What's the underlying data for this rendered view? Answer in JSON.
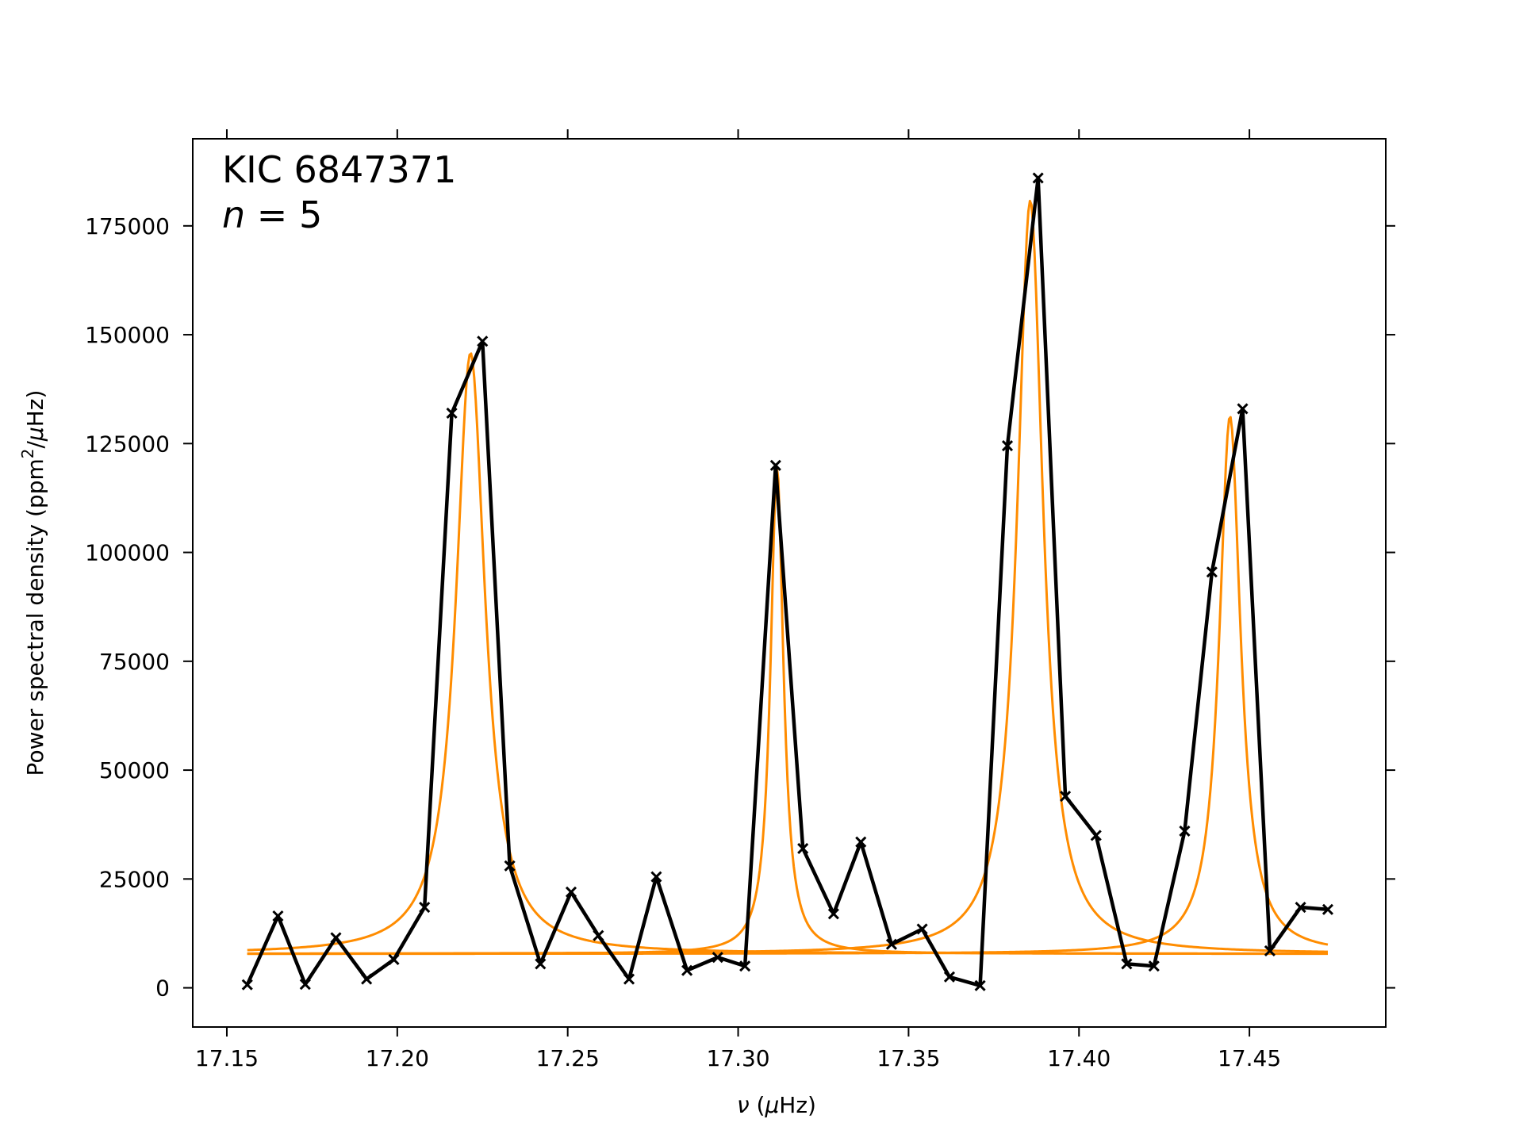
{
  "chart_data": {
    "type": "line",
    "annotation": {
      "line1": "KIC 6847371",
      "line2_var": "n",
      "line2_rest": " = 5"
    },
    "xlabel": {
      "sym": "ν",
      "open": " (",
      "mu": "μ",
      "unit": "Hz)"
    },
    "ylabel": {
      "main": "Power spectral density (ppm",
      "sup": "2",
      "sep": "/",
      "mu": "μ",
      "unit": "Hz)"
    },
    "xlim": [
      17.14,
      17.49
    ],
    "ylim": [
      -9000,
      195000
    ],
    "xticks": [
      17.15,
      17.2,
      17.25,
      17.3,
      17.35,
      17.4,
      17.45
    ],
    "xtick_labels": [
      "17.15",
      "17.20",
      "17.25",
      "17.30",
      "17.35",
      "17.40",
      "17.45"
    ],
    "yticks": [
      0,
      25000,
      50000,
      75000,
      100000,
      125000,
      150000,
      175000
    ],
    "ytick_labels": [
      "0",
      "25000",
      "50000",
      "75000",
      "100000",
      "125000",
      "150000",
      "175000"
    ],
    "grid": false,
    "colors": {
      "data": "#000000",
      "fit": "#ff8c00"
    },
    "series": [
      {
        "marker": "x",
        "x": [
          17.156,
          17.165,
          17.173,
          17.182,
          17.191,
          17.199,
          17.208,
          17.216,
          17.225,
          17.233,
          17.242,
          17.251,
          17.259,
          17.268,
          17.276,
          17.285,
          17.294,
          17.302,
          17.311,
          17.319,
          17.328,
          17.336,
          17.345,
          17.354,
          17.362,
          17.371,
          17.379,
          17.388,
          17.396,
          17.405,
          17.414,
          17.422,
          17.431,
          17.439,
          17.448,
          17.456,
          17.465,
          17.473
        ],
        "y": [
          700,
          16500,
          800,
          11500,
          2000,
          6500,
          18500,
          132000,
          148500,
          28000,
          5500,
          22000,
          12000,
          2000,
          25500,
          4000,
          7000,
          5000,
          120000,
          32000,
          17000,
          33500,
          10000,
          13500,
          2500,
          500,
          124500,
          186000,
          44000,
          35000,
          5500,
          5000,
          36000,
          95500,
          133000,
          8500,
          18500,
          18000
        ]
      }
    ],
    "fit_components": [
      {
        "center": 17.2215,
        "amplitude": 138000,
        "hwhm": 0.0052
      },
      {
        "center": 17.3114,
        "amplitude": 112000,
        "hwhm": 0.0023
      },
      {
        "center": 17.3857,
        "amplitude": 173000,
        "hwhm": 0.0046
      },
      {
        "center": 17.4443,
        "amplitude": 123500,
        "hwhm": 0.0038
      }
    ],
    "fit_background": 7800,
    "fit_range": [
      17.156,
      17.473
    ]
  }
}
